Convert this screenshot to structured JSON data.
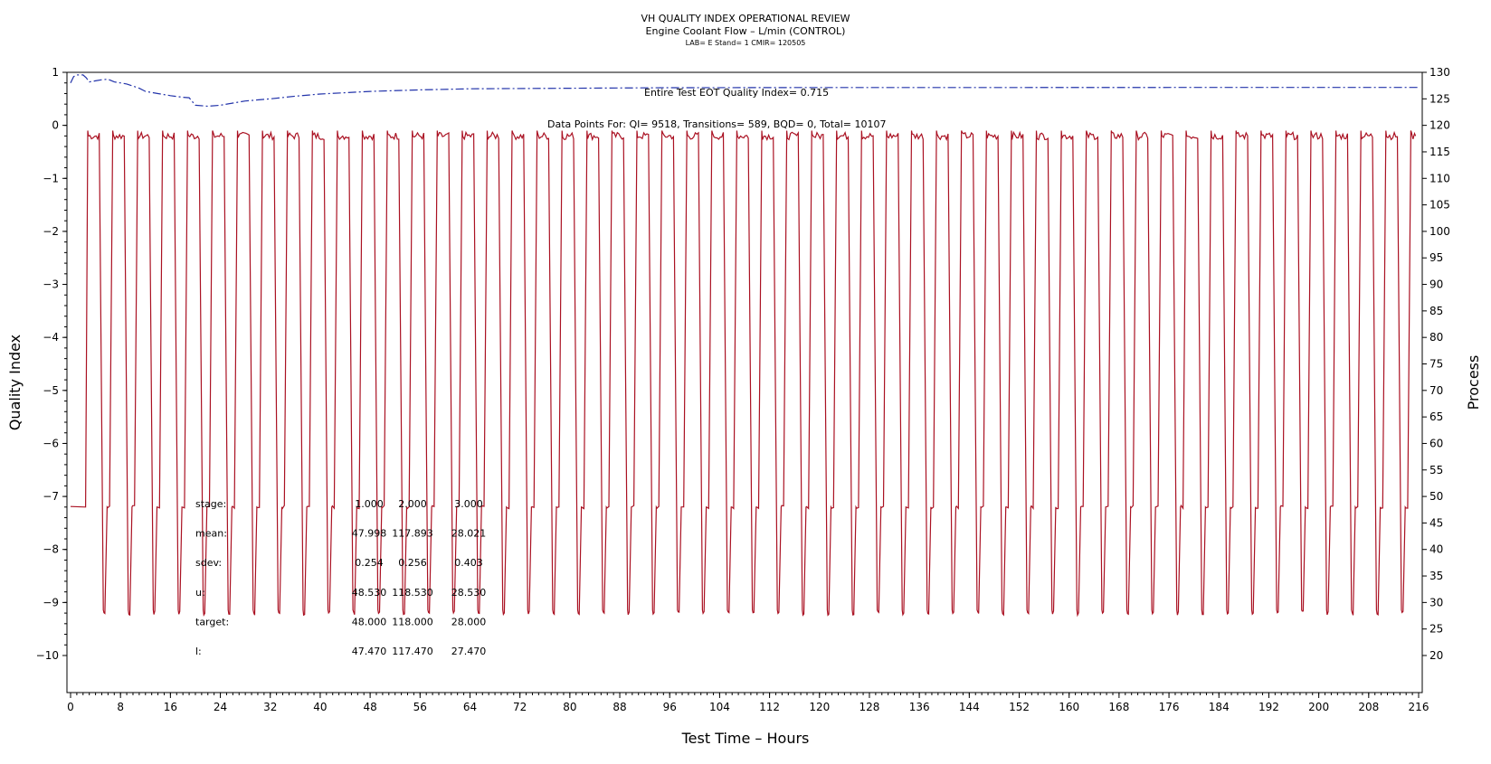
{
  "title": "VH QUALITY INDEX OPERATIONAL REVIEW",
  "subtitle": "Engine Coolant Flow – L/min (CONTROL)",
  "subsubtitle": "LAB= E Stand= 1 CMIR= 120505",
  "annotations": {
    "eot_qi": "Entire Test EOT Quality Index=  0.715",
    "data_points": "Data Points For: QI=  9518, Transitions=   589, BQD=    0, Total= 10107"
  },
  "stats_table": {
    "row_labels": [
      "stage:",
      "mean:",
      "sdev:",
      "u:",
      "target:",
      "l:"
    ],
    "columns": [
      [
        "1.000",
        "47.998",
        "0.254",
        "48.530",
        "48.000",
        "47.470"
      ],
      [
        "2.000",
        "117.893",
        "0.256",
        "118.530",
        "118.000",
        "117.470"
      ],
      [
        "3.000",
        "28.021",
        "0.403",
        "28.530",
        "28.000",
        "27.470"
      ]
    ]
  },
  "colors": {
    "quality_index": "#2233aa",
    "process": "#aa1122"
  },
  "chart_data": {
    "type": "line",
    "xlabel": "Test Time – Hours",
    "ylabel": "Quality Index",
    "y2label": "Process",
    "xlim": [
      0,
      216
    ],
    "ylim": [
      -10,
      1
    ],
    "y2lim": [
      20,
      130
    ],
    "xticks": [
      "0",
      "8",
      "16",
      "24",
      "32",
      "40",
      "48",
      "56",
      "64",
      "72",
      "80",
      "88",
      "96",
      "104",
      "112",
      "120",
      "128",
      "136",
      "144",
      "152",
      "160",
      "168",
      "176",
      "184",
      "192",
      "200",
      "208",
      "216"
    ],
    "yticks": [
      "1",
      "0",
      "−1",
      "−2",
      "−3",
      "−4",
      "−5",
      "−6",
      "−7",
      "−8",
      "−9",
      "−10"
    ],
    "y2ticks": [
      "130",
      "125",
      "120",
      "115",
      "110",
      "105",
      "100",
      "95",
      "90",
      "85",
      "80",
      "75",
      "70",
      "65",
      "60",
      "55",
      "50",
      "45",
      "40",
      "35",
      "30",
      "25",
      "20"
    ],
    "grid": false,
    "series": [
      {
        "axis": "left",
        "style": "dash-dot",
        "x": [
          0,
          0.5,
          1,
          2,
          2.5,
          3,
          4,
          5,
          6,
          7,
          8,
          9,
          10,
          11,
          12,
          14,
          16,
          18,
          19,
          19.5,
          20,
          22,
          24,
          26,
          28,
          32,
          36,
          40,
          48,
          56,
          64,
          80,
          96,
          120,
          150,
          180,
          216
        ],
        "values": [
          0.8,
          0.92,
          0.95,
          0.95,
          0.9,
          0.82,
          0.84,
          0.86,
          0.87,
          0.82,
          0.8,
          0.78,
          0.74,
          0.7,
          0.64,
          0.6,
          0.56,
          0.53,
          0.52,
          0.45,
          0.38,
          0.36,
          0.38,
          0.42,
          0.46,
          0.5,
          0.55,
          0.59,
          0.64,
          0.67,
          0.69,
          0.7,
          0.71,
          0.713,
          0.714,
          0.715,
          0.715
        ]
      },
      {
        "axis": "right",
        "style": "solid",
        "levels": [
          48,
          118,
          28
        ],
        "first_transition_hour": 2.4,
        "cycle_hours": 4.0,
        "last_hour": 215.5
      }
    ]
  }
}
